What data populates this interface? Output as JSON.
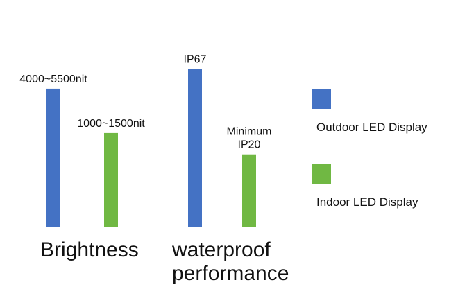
{
  "chart_data": {
    "type": "bar",
    "categories": [
      {
        "lines": [
          "Brightness"
        ]
      },
      {
        "lines": [
          "waterproof",
          "performance"
        ]
      }
    ],
    "series": [
      {
        "name": "Outdoor LED Display",
        "color": "#4472C4",
        "values": [
          0.84,
          0.96
        ],
        "labels": [
          [
            "4000~5500nit"
          ],
          [
            "IP67"
          ]
        ]
      },
      {
        "name": "Indoor LED Display",
        "color": "#70B843",
        "values": [
          0.57,
          0.44
        ],
        "labels": [
          [
            "1000~1500nit"
          ],
          [
            "Minimum",
            "IP20"
          ]
        ]
      }
    ],
    "grid": false,
    "axes_visible": false,
    "legend": "right"
  }
}
